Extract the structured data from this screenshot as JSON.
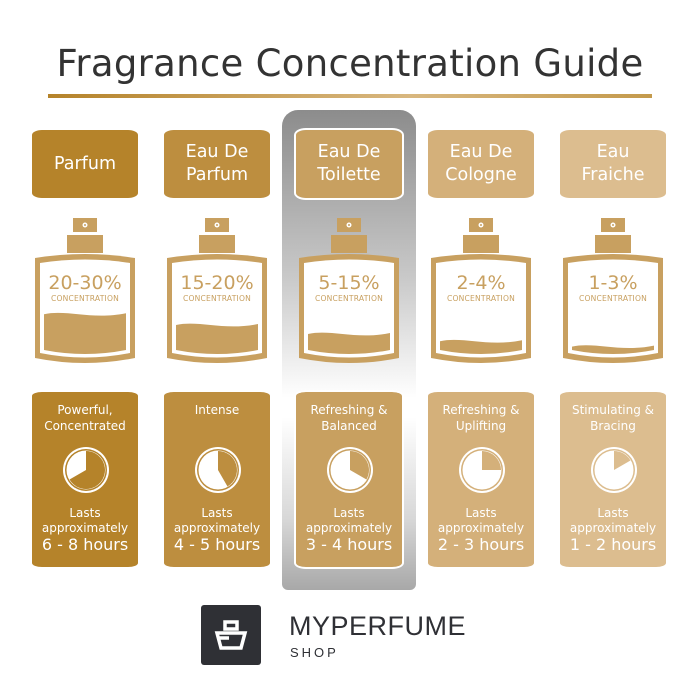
{
  "title": "Fragrance Concentration Guide",
  "columns": [
    {
      "name": "Parfum",
      "concentration": "20-30%",
      "concentration_label": "CONCENTRATION",
      "description": "Powerful, Concentrated",
      "lasts": "Lasts approximately",
      "hours": "6 - 8 hours",
      "color": "#b5832a",
      "fill_level": 0.42,
      "dial_hours": 8,
      "highlighted": false
    },
    {
      "name": "Eau De Parfum",
      "concentration": "15-20%",
      "concentration_label": "CONCENTRATION",
      "description": "Intense",
      "lasts": "Lasts approximately",
      "hours": "4 - 5 hours",
      "color": "#bd8e3f",
      "fill_level": 0.3,
      "dial_hours": 5,
      "highlighted": false
    },
    {
      "name": "Eau De Toilette",
      "concentration": "5-15%",
      "concentration_label": "CONCENTRATION",
      "description": "Refreshing & Balanced",
      "lasts": "Lasts approximately",
      "hours": "3 - 4 hours",
      "color": "#c8a060",
      "fill_level": 0.2,
      "dial_hours": 4,
      "highlighted": true
    },
    {
      "name": "Eau De Cologne",
      "concentration": "2-4%",
      "concentration_label": "CONCENTRATION",
      "description": "Refreshing & Uplifting",
      "lasts": "Lasts approximately",
      "hours": "2 - 3 hours",
      "color": "#d4b07a",
      "fill_level": 0.12,
      "dial_hours": 3,
      "highlighted": false
    },
    {
      "name": "Eau Fraiche",
      "concentration": "1-3%",
      "concentration_label": "CONCENTRATION",
      "description": "Stimulating & Bracing",
      "lasts": "Lasts approximately",
      "hours": "1 - 2 hours",
      "color": "#dcbd8f",
      "fill_level": 0.06,
      "dial_hours": 2,
      "highlighted": false
    }
  ],
  "bottle_color": "#c8a060",
  "brand": {
    "name": "MYPERFUME",
    "sub": "SHOP",
    "color": "#2f3035"
  }
}
